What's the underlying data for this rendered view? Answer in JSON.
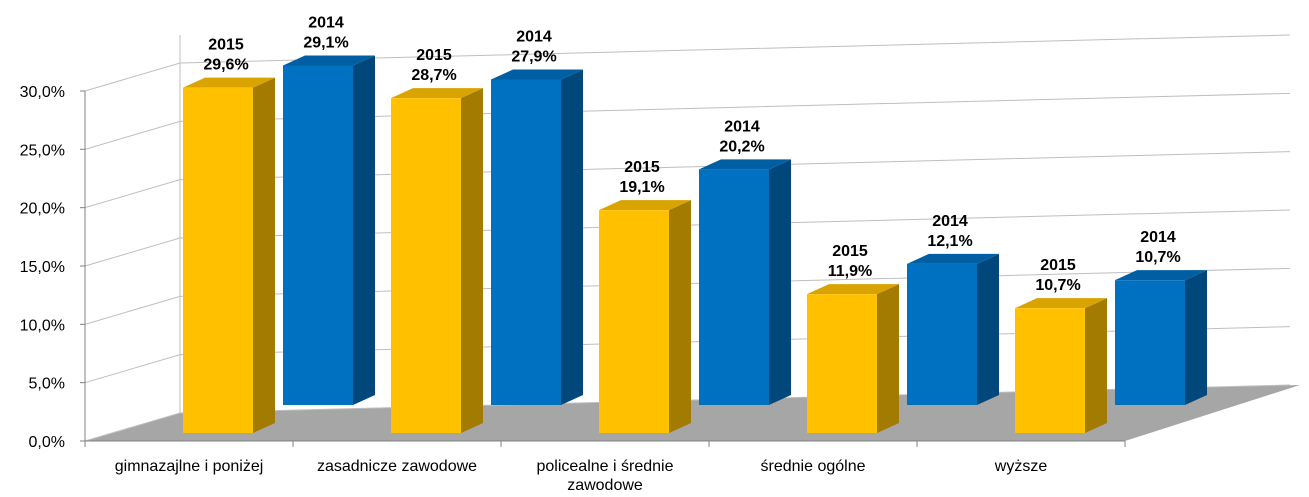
{
  "chart_data": {
    "type": "bar3d",
    "categories": [
      "gimnazajlne i poniżej",
      "zasadnicze zawodowe",
      "policealne i średnie zawodowe",
      "średnie ogólne",
      "wyższe"
    ],
    "series": [
      {
        "name": "2015",
        "color": "#FFC000",
        "values": [
          29.6,
          28.7,
          19.1,
          11.9,
          10.7
        ],
        "value_labels": [
          "29,6%",
          "28,7%",
          "19,1%",
          "11,9%",
          "10,7%"
        ]
      },
      {
        "name": "2014",
        "color": "#0070C0",
        "values": [
          29.1,
          27.9,
          20.2,
          12.1,
          10.7
        ],
        "value_labels": [
          "29,1%",
          "27,9%",
          "20,2%",
          "12,1%",
          "10,7%"
        ]
      }
    ],
    "ylim": [
      0,
      30
    ],
    "yticks": [
      {
        "value": 0,
        "label": "0,0%"
      },
      {
        "value": 5,
        "label": "5,0%"
      },
      {
        "value": 10,
        "label": "10,0%"
      },
      {
        "value": 15,
        "label": "15,0%"
      },
      {
        "value": 20,
        "label": "20,0%"
      },
      {
        "value": 25,
        "label": "25,0%"
      },
      {
        "value": 30,
        "label": "30,0%"
      }
    ],
    "grid": true
  }
}
